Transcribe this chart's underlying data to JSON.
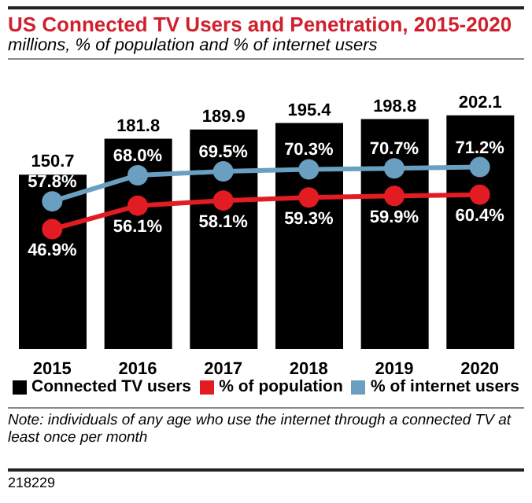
{
  "chart_data": {
    "type": "bar",
    "title": "US Connected TV Users and Penetration, 2015-2020",
    "subtitle": "millions, % of population and % of internet users",
    "categories": [
      "2015",
      "2016",
      "2017",
      "2018",
      "2019",
      "2020"
    ],
    "series": [
      {
        "name": "Connected TV users",
        "color": "#000000",
        "values": [
          150.7,
          181.8,
          189.9,
          195.4,
          198.8,
          202.1
        ]
      },
      {
        "name": "% of population",
        "type": "line",
        "axis": "y2",
        "color": "#e31b23",
        "values": [
          46.9,
          56.1,
          58.1,
          59.3,
          59.9,
          60.4
        ],
        "value_labels": [
          "46.9%",
          "56.1%",
          "58.1%",
          "59.3%",
          "59.9%",
          "60.4%"
        ]
      },
      {
        "name": "% of internet users",
        "type": "line",
        "axis": "y2",
        "color": "#6a9fc1",
        "values": [
          57.8,
          68.0,
          69.5,
          70.3,
          70.7,
          71.2
        ],
        "value_labels": [
          "57.8%",
          "68.0%",
          "69.5%",
          "70.3%",
          "70.7%",
          "71.2%"
        ]
      }
    ],
    "tick_labels": "x",
    "data_labels": true,
    "legend": "bottom",
    "marker": "circle",
    "annotations": [
      "Note: individuals of any age who use the internet through a connected TV at least once per month",
      "218229"
    ]
  }
}
